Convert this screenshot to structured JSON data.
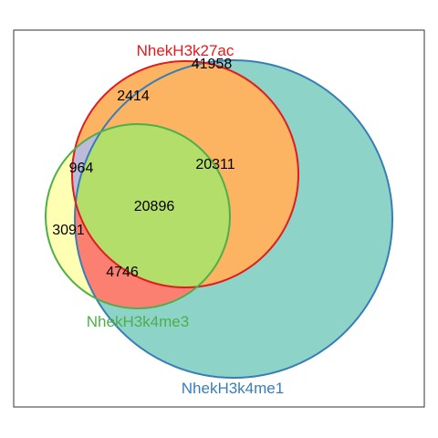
{
  "sets": [
    {
      "key": "h3k4me1",
      "name": "NhekH3k4me1",
      "fill": "#8dd3c7",
      "stroke": "#377eb8"
    },
    {
      "key": "h3k27ac",
      "name": "NhekH3k27ac",
      "fill": "#fdb462",
      "stroke": "#e41a1c"
    },
    {
      "key": "h3k4me3",
      "name": "NhekH3k4me3",
      "fill": "#ffffb3",
      "stroke": "#4daf4a"
    }
  ],
  "regions": [
    {
      "sets": [
        "h3k4me1"
      ],
      "count": "41958"
    },
    {
      "sets": [
        "h3k27ac"
      ],
      "count": "2414"
    },
    {
      "sets": [
        "h3k4me1",
        "h3k27ac"
      ],
      "count": "20311"
    },
    {
      "sets": [
        "h3k27ac",
        "h3k4me3"
      ],
      "count": "964"
    },
    {
      "sets": [
        "h3k4me1",
        "h3k27ac",
        "h3k4me3"
      ],
      "count": "20896"
    },
    {
      "sets": [
        "h3k4me3"
      ],
      "count": "3091"
    },
    {
      "sets": [
        "h3k4me1",
        "h3k4me3"
      ],
      "count": "4746"
    }
  ],
  "colors": {
    "frame": "#333333",
    "pair_27ac_4me3_only": "#bebada",
    "pair_4me1_4me3_only": "#fb8072",
    "triple": "#b3de69",
    "background": "#ffffff"
  }
}
